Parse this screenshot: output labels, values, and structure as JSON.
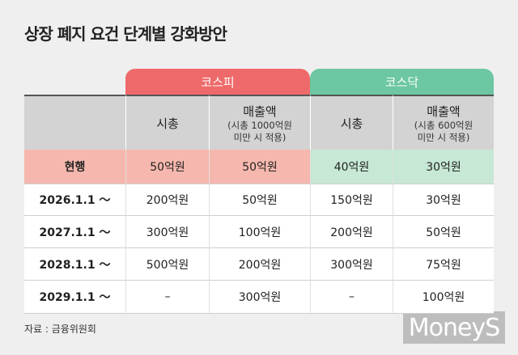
{
  "header": {
    "title": "상장 폐지 요건 단계별 강화방안"
  },
  "table": {
    "groups": [
      "코스피",
      "코스닥"
    ],
    "columns": [
      {
        "title": "시총"
      },
      {
        "title": "매출액",
        "note": [
          "(시총 1000억원",
          "미만 시 적용)"
        ]
      },
      {
        "title": "시총"
      },
      {
        "title": "매출액",
        "note": [
          "(시총 600억원",
          "미만 시 적용)"
        ]
      }
    ],
    "rows": [
      [
        "현행",
        "50억원",
        "50억원",
        "40억원",
        "30억원"
      ],
      [
        "2026.1.1 ～",
        "200억원",
        "50억원",
        "150억원",
        "30억원"
      ],
      [
        "2027.1.1 ～",
        "300억원",
        "100억원",
        "200억원",
        "50억원"
      ],
      [
        "2028.1.1 ～",
        "500억원",
        "200억원",
        "300억원",
        "75억원"
      ],
      [
        "2029.1.1 ～",
        "–",
        "300억원",
        "–",
        "100억원"
      ]
    ]
  },
  "footer": {
    "source": "자료 : 금융위원회",
    "logo": "MoneyS"
  }
}
